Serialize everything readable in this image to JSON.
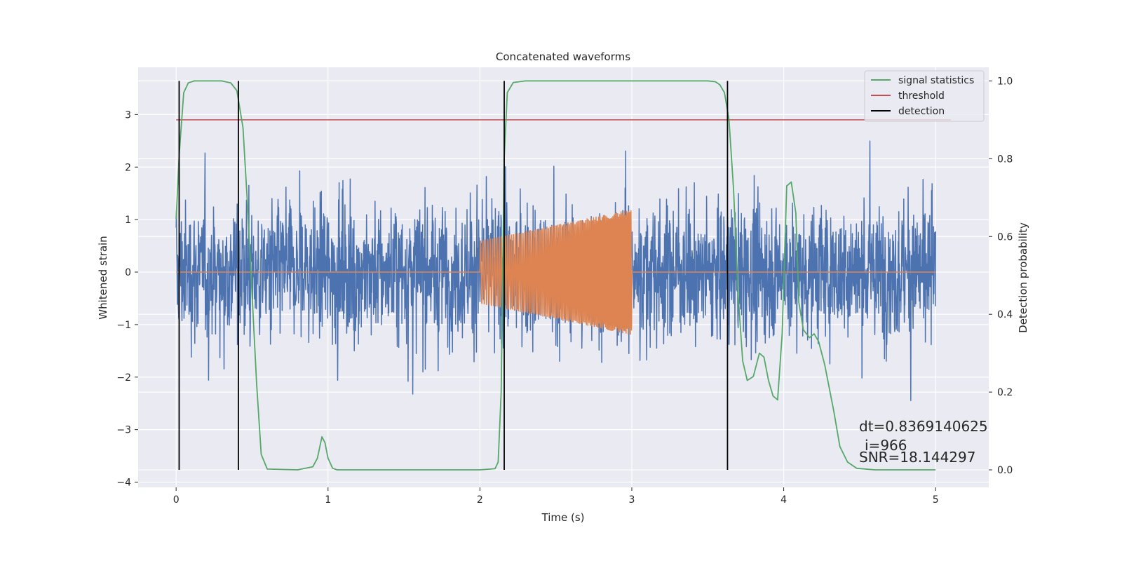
{
  "chart_data": {
    "type": "line",
    "title": "Concatenated waveforms",
    "xlabel": "Time (s)",
    "ylabel": "Whitened strain",
    "y2label": "Detection probability",
    "xlim": [
      -0.25,
      5.35
    ],
    "ylim": [
      -4.1,
      3.9
    ],
    "y2lim": [
      -0.045,
      1.035
    ],
    "xticks": [
      0,
      1,
      2,
      3,
      4,
      5
    ],
    "yticks": [
      -4,
      -3,
      -2,
      -1,
      0,
      1,
      2,
      3
    ],
    "y2ticks": [
      "0.0",
      "0.2",
      "0.4",
      "0.6",
      "0.8",
      "1.0"
    ],
    "grid": true,
    "legend_position": "top-right",
    "colors": {
      "background": "#eaeaf2",
      "strain": "#4c72b0",
      "template": "#dd8452",
      "signal_statistics": "#55a868",
      "threshold": "#c44e52",
      "detection": "#000000"
    },
    "series": [
      {
        "name": "",
        "kind": "whitened strain noise",
        "x_range": [
          0,
          5
        ],
        "amplitude_range": [
          -3.7,
          3.6
        ]
      },
      {
        "name": "",
        "kind": "injected chirp",
        "x_range": [
          2.0,
          3.0
        ],
        "amplitude_start": 0.6,
        "amplitude_end": 1.2
      },
      {
        "name": "signal statistics",
        "x": [
          0.0,
          0.02,
          0.05,
          0.08,
          0.12,
          0.3,
          0.36,
          0.4,
          0.44,
          0.47,
          0.5,
          0.53,
          0.56,
          0.6,
          0.8,
          0.9,
          0.93,
          0.96,
          0.98,
          1.0,
          1.03,
          1.06,
          1.1,
          1.5,
          2.0,
          2.1,
          2.12,
          2.14,
          2.16,
          2.18,
          2.22,
          2.3,
          3.0,
          3.5,
          3.55,
          3.58,
          3.61,
          3.64,
          3.67,
          3.7,
          3.73,
          3.76,
          3.8,
          3.84,
          3.87,
          3.9,
          3.93,
          3.96,
          3.99,
          4.02,
          4.05,
          4.08,
          4.1,
          4.13,
          4.17,
          4.2,
          4.23,
          4.27,
          4.33,
          4.37,
          4.42,
          4.48,
          4.6,
          5.0
        ],
        "y": [
          0.645,
          0.81,
          0.97,
          0.995,
          1.0,
          1.0,
          0.995,
          0.975,
          0.88,
          0.68,
          0.45,
          0.22,
          0.04,
          0.002,
          0.0,
          0.008,
          0.03,
          0.085,
          0.07,
          0.03,
          0.004,
          0.0,
          0.0,
          0.0,
          0.0,
          0.003,
          0.02,
          0.2,
          0.8,
          0.97,
          0.996,
          1.0,
          1.0,
          1.0,
          0.998,
          0.99,
          0.97,
          0.9,
          0.72,
          0.45,
          0.28,
          0.23,
          0.24,
          0.3,
          0.29,
          0.23,
          0.19,
          0.18,
          0.35,
          0.73,
          0.74,
          0.66,
          0.43,
          0.36,
          0.34,
          0.35,
          0.33,
          0.27,
          0.15,
          0.06,
          0.02,
          0.004,
          0.0,
          0.0
        ]
      },
      {
        "name": "threshold",
        "x": [
          0.0,
          5.1
        ],
        "y": [
          0.9,
          0.9
        ]
      },
      {
        "name": "detection",
        "x": [
          0.02,
          0.41,
          2.16,
          3.63
        ],
        "y_range": [
          0,
          1
        ]
      }
    ],
    "annotations": {
      "dt": "dt=0.8369140625",
      "i": "i=966",
      "snr": "SNR=18.144297"
    }
  }
}
